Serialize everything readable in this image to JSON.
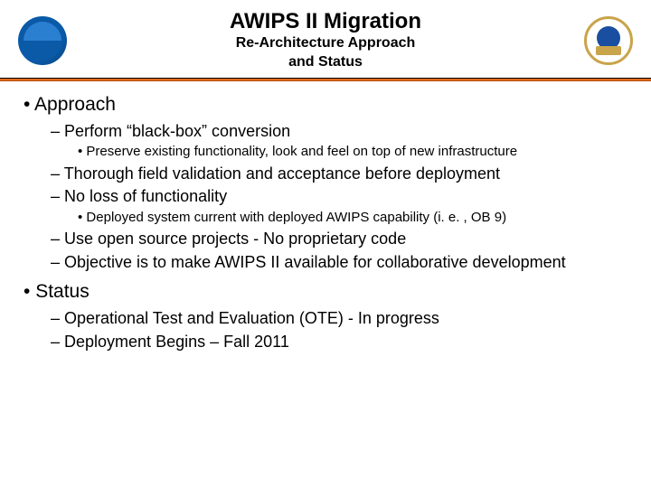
{
  "header": {
    "title": "AWIPS II Migration",
    "subtitle1": "Re-Architecture Approach",
    "subtitle2": "and Status"
  },
  "divider_color": "#e36c1c",
  "content": {
    "items": [
      {
        "label": "Approach",
        "children": [
          {
            "label": "Perform “black-box” conversion",
            "children": [
              {
                "label": "Preserve existing functionality, look and feel on top of new infrastructure"
              }
            ]
          },
          {
            "label": "Thorough field validation and acceptance before deployment"
          },
          {
            "label": "No loss of functionality",
            "children": [
              {
                "label": "Deployed system current with deployed AWIPS capability (i. e. , OB 9)"
              }
            ]
          },
          {
            "label": "Use open source projects - No proprietary code"
          },
          {
            "label": "Objective is to make AWIPS II available for collaborative development"
          }
        ]
      },
      {
        "label": "Status",
        "children": [
          {
            "label": "Operational Test and Evaluation (OTE) -  In progress"
          },
          {
            "label": "Deployment Begins – Fall 2011"
          }
        ]
      }
    ]
  }
}
